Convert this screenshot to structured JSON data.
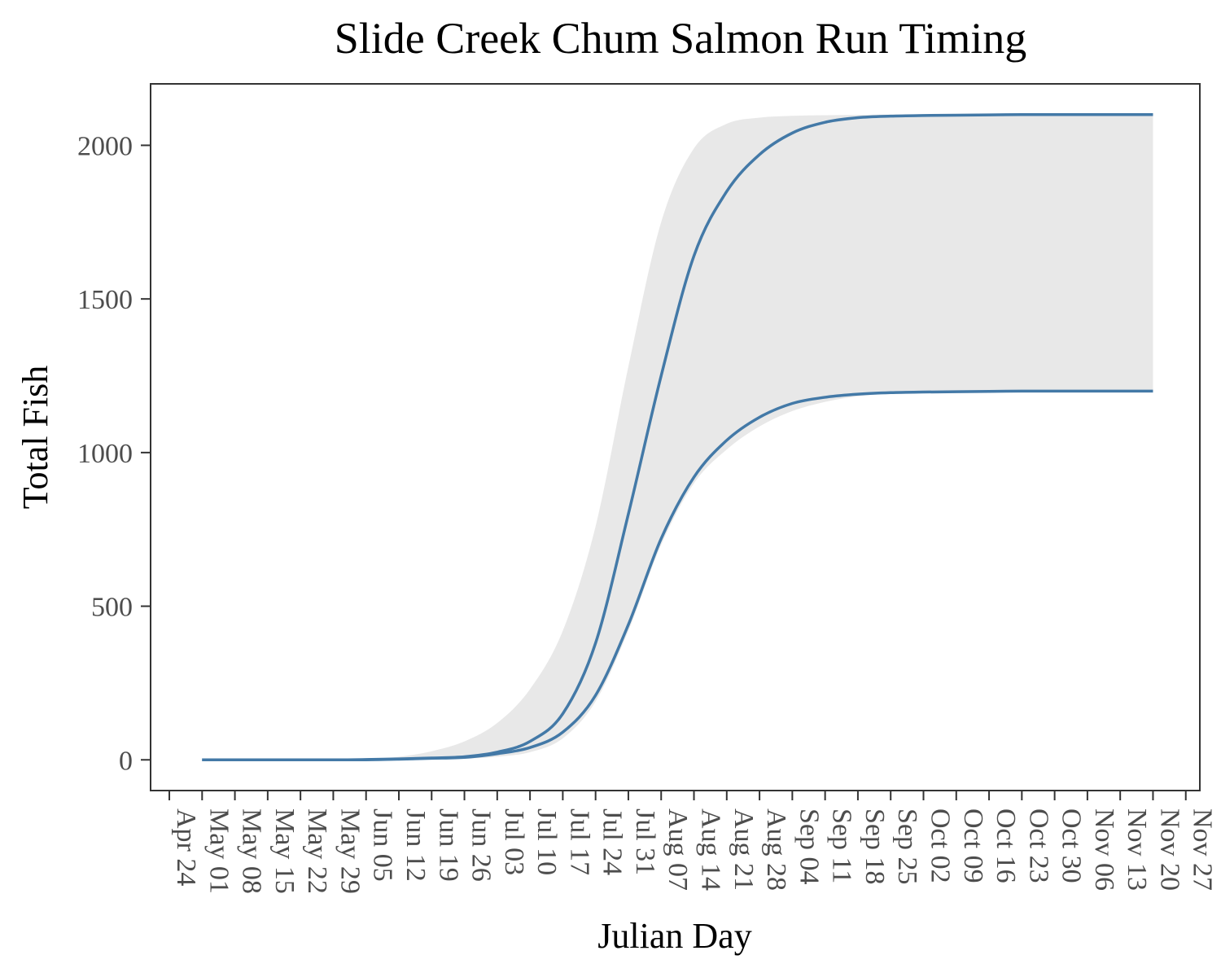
{
  "chart_data": {
    "type": "line",
    "title": "Slide Creek Chum Salmon Run Timing",
    "xlabel": "Julian Day",
    "ylabel": "Total Fish",
    "x_tick_labels": [
      "Apr 24",
      "May 01",
      "May 08",
      "May 15",
      "May 22",
      "May 29",
      "Jun 05",
      "Jun 12",
      "Jun 19",
      "Jun 26",
      "Jul 03",
      "Jul 10",
      "Jul 17",
      "Jul 24",
      "Jul 31",
      "Aug 07",
      "Aug 14",
      "Aug 21",
      "Aug 28",
      "Sep 04",
      "Sep 11",
      "Sep 18",
      "Sep 25",
      "Oct 02",
      "Oct 09",
      "Oct 16",
      "Oct 23",
      "Oct 30",
      "Nov 06",
      "Nov 13",
      "Nov 20",
      "Nov 27"
    ],
    "y_ticks": [
      0,
      500,
      1000,
      1500,
      2000
    ],
    "y_tick_labels": [
      "0",
      "500",
      "1000",
      "1500",
      "2000"
    ],
    "xlim": [
      "2021-04-20",
      "2021-11-30"
    ],
    "ylim": [
      -100,
      2200
    ],
    "grid": false,
    "colors": {
      "line": "#4379a7",
      "ribbon": "#e8e8e8",
      "frame": "#333333"
    },
    "x": [
      "2021-05-01",
      "2021-05-15",
      "2021-05-29",
      "2021-06-05",
      "2021-06-12",
      "2021-06-19",
      "2021-06-26",
      "2021-07-03",
      "2021-07-10",
      "2021-07-17",
      "2021-07-24",
      "2021-07-31",
      "2021-08-07",
      "2021-08-14",
      "2021-08-21",
      "2021-08-28",
      "2021-09-04",
      "2021-09-11",
      "2021-09-18",
      "2021-09-25",
      "2021-10-02",
      "2021-10-09",
      "2021-10-16",
      "2021-10-23",
      "2021-10-30",
      "2021-11-06",
      "2021-11-13",
      "2021-11-20"
    ],
    "series": [
      {
        "values": [
          0,
          0,
          0,
          1,
          3,
          6,
          10,
          25,
          60,
          150,
          380,
          800,
          1250,
          1640,
          1850,
          1970,
          2040,
          2075,
          2090,
          2095,
          2097,
          2098,
          2099,
          2100,
          2100,
          2100,
          2100,
          2100
        ]
      },
      {
        "values": [
          0,
          0,
          0,
          0,
          2,
          5,
          8,
          20,
          40,
          90,
          210,
          440,
          720,
          920,
          1040,
          1115,
          1160,
          1180,
          1190,
          1195,
          1197,
          1198,
          1199,
          1200,
          1200,
          1200,
          1200,
          1200
        ]
      }
    ],
    "ribbon": {
      "lower": [
        0,
        0,
        0,
        0,
        1,
        2,
        4,
        10,
        25,
        70,
        190,
        420,
        700,
        900,
        1010,
        1085,
        1135,
        1165,
        1183,
        1192,
        1196,
        1198,
        1199,
        1200,
        1200,
        1200,
        1200,
        1200
      ],
      "upper": [
        0,
        0,
        0,
        3,
        10,
        28,
        60,
        120,
        230,
        420,
        760,
        1280,
        1750,
        1990,
        2070,
        2090,
        2096,
        2098,
        2099,
        2100,
        2100,
        2100,
        2100,
        2100,
        2100,
        2100,
        2100,
        2100
      ]
    }
  }
}
